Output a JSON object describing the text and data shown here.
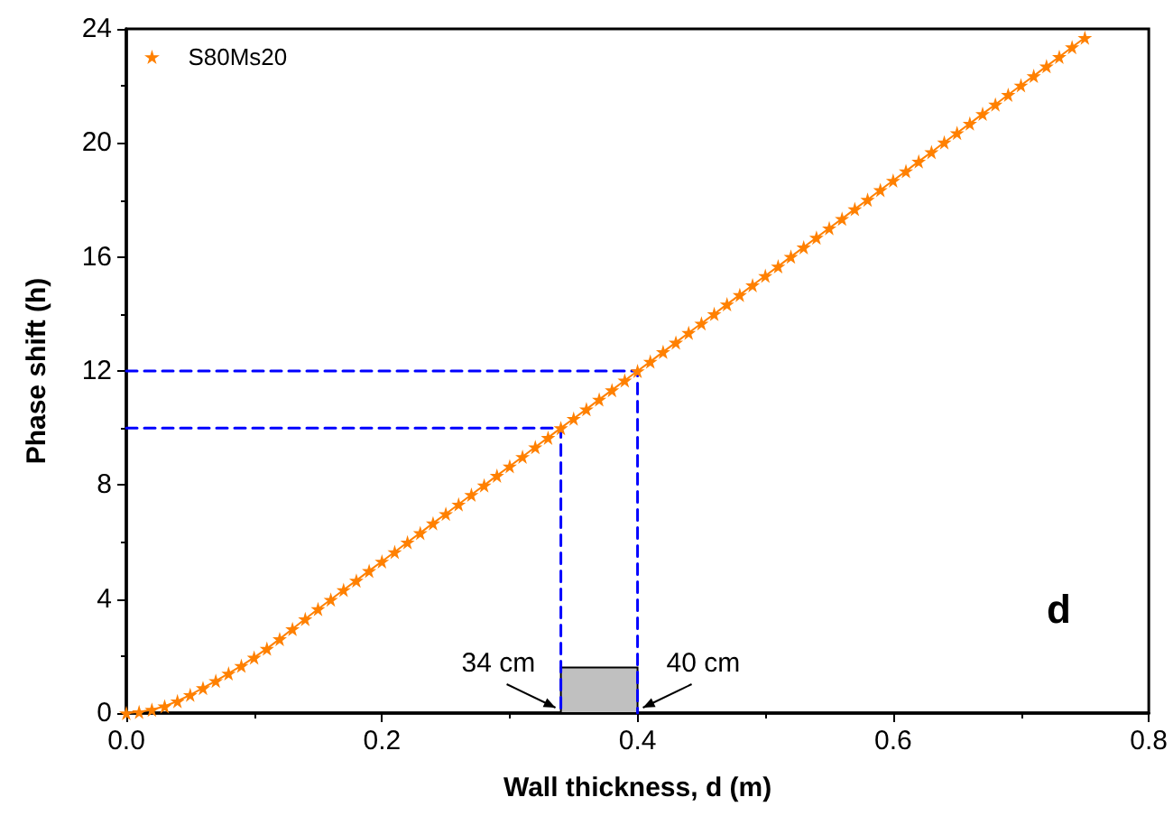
{
  "chart_data": {
    "type": "line",
    "xlabel": "Wall thickness, d (m)",
    "ylabel": "Phase shift (h)",
    "xlim": [
      0,
      0.8
    ],
    "xticks": [
      {
        "value": 0,
        "label": "0.0"
      },
      {
        "value": 0.2,
        "label": "0.2"
      },
      {
        "value": 0.4,
        "label": "0.4"
      },
      {
        "value": 0.6,
        "label": "0.6"
      },
      {
        "value": 0.8,
        "label": "0.8"
      }
    ],
    "ylim": [
      0,
      24
    ],
    "yticks": [
      0,
      4,
      8,
      12,
      16,
      20,
      24
    ],
    "grid": false,
    "legend": "top left",
    "series": [
      {
        "name": "S80Ms20",
        "color": "#ff8000",
        "marker": "star",
        "line_style": "solid",
        "x": [
          0,
          0.01,
          0.02,
          0.03,
          0.04,
          0.05,
          0.06,
          0.07,
          0.08,
          0.09,
          0.1,
          0.11,
          0.12,
          0.13,
          0.14,
          0.15,
          0.16,
          0.17,
          0.18,
          0.19,
          0.2,
          0.21,
          0.22,
          0.23,
          0.24,
          0.25,
          0.26,
          0.27,
          0.28,
          0.29,
          0.3,
          0.31,
          0.32,
          0.33,
          0.34,
          0.35,
          0.36,
          0.37,
          0.38,
          0.39,
          0.4,
          0.41,
          0.42,
          0.43,
          0.44,
          0.45,
          0.46,
          0.47,
          0.48,
          0.49,
          0.5,
          0.51,
          0.52,
          0.53,
          0.54,
          0.55,
          0.56,
          0.57,
          0.58,
          0.59,
          0.6,
          0.61,
          0.62,
          0.63,
          0.64,
          0.65,
          0.66,
          0.67,
          0.68,
          0.69,
          0.7,
          0.71,
          0.72,
          0.73,
          0.74,
          0.75
        ],
        "values": [
          0,
          0.04,
          0.12,
          0.24,
          0.42,
          0.64,
          0.88,
          1.13,
          1.39,
          1.66,
          1.95,
          2.26,
          2.6,
          2.95,
          3.3,
          3.65,
          3.98,
          4.32,
          4.65,
          4.99,
          5.32,
          5.65,
          5.99,
          6.32,
          6.66,
          6.99,
          7.32,
          7.66,
          7.99,
          8.33,
          8.66,
          8.99,
          9.33,
          9.66,
          10,
          10.33,
          10.66,
          11,
          11.33,
          11.67,
          12,
          12.33,
          12.67,
          13,
          13.34,
          13.67,
          14,
          14.34,
          14.67,
          15.01,
          15.34,
          15.67,
          16.01,
          16.34,
          16.68,
          17.01,
          17.34,
          17.68,
          18.01,
          18.35,
          18.68,
          19.01,
          19.35,
          19.68,
          20.02,
          20.35,
          20.68,
          21.02,
          21.35,
          21.69,
          22.02,
          22.35,
          22.69,
          23.02,
          23.36,
          23.69
        ]
      },
      {
        "type": "line",
        "color": "#0000ff",
        "marker": "none",
        "line_style": "dashed",
        "x": [
          0,
          0.34,
          0.34
        ],
        "values": [
          10,
          10,
          0
        ]
      },
      {
        "type": "line",
        "color": "#0000ff",
        "marker": "none",
        "line_style": "dashed",
        "x": [
          0,
          0.4,
          0.4
        ],
        "values": [
          12,
          12,
          0
        ]
      }
    ],
    "bands": [
      {
        "axis": "x",
        "from": 0.34,
        "to": 0.4,
        "color": "#c0c0c0"
      }
    ],
    "annotations": [
      {
        "text": "34 cm",
        "x": 0.34,
        "y": 0
      },
      {
        "text": "40 cm",
        "x": 0.4,
        "y": 0
      },
      "d"
    ]
  }
}
